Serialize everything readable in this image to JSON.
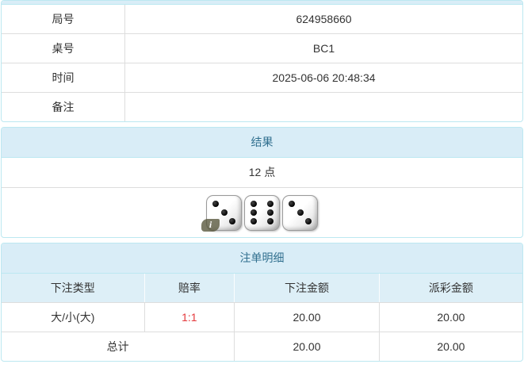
{
  "colors": {
    "panel_border": "#bce8f1",
    "header_bg": "#d9edf7",
    "header_text": "#31708f",
    "column_header_bg": "#ddeff7",
    "row_divider": "#dddddd",
    "body_text": "#333333",
    "odds_red": "#e4393c"
  },
  "info_table": {
    "rows": [
      {
        "label": "局号",
        "value": "624958660"
      },
      {
        "label": "桌号",
        "value": "BC1"
      },
      {
        "label": "时间",
        "value": "2025-06-06 20:48:34"
      },
      {
        "label": "备注",
        "value": ""
      }
    ]
  },
  "result_panel": {
    "title": "结果",
    "points": "12 点",
    "dice": [
      3,
      6,
      3
    ],
    "info_badge": "i"
  },
  "bet_panel": {
    "title": "注单明细",
    "columns": [
      "下注类型",
      "赔率",
      "下注金额",
      "派彩金额"
    ],
    "rows": [
      {
        "bet_type": "大/小(大)",
        "odds": "1:1",
        "bet_amount": "20.00",
        "payout": "20.00"
      }
    ],
    "total": {
      "label": "总计",
      "bet_amount": "20.00",
      "payout": "20.00"
    }
  }
}
